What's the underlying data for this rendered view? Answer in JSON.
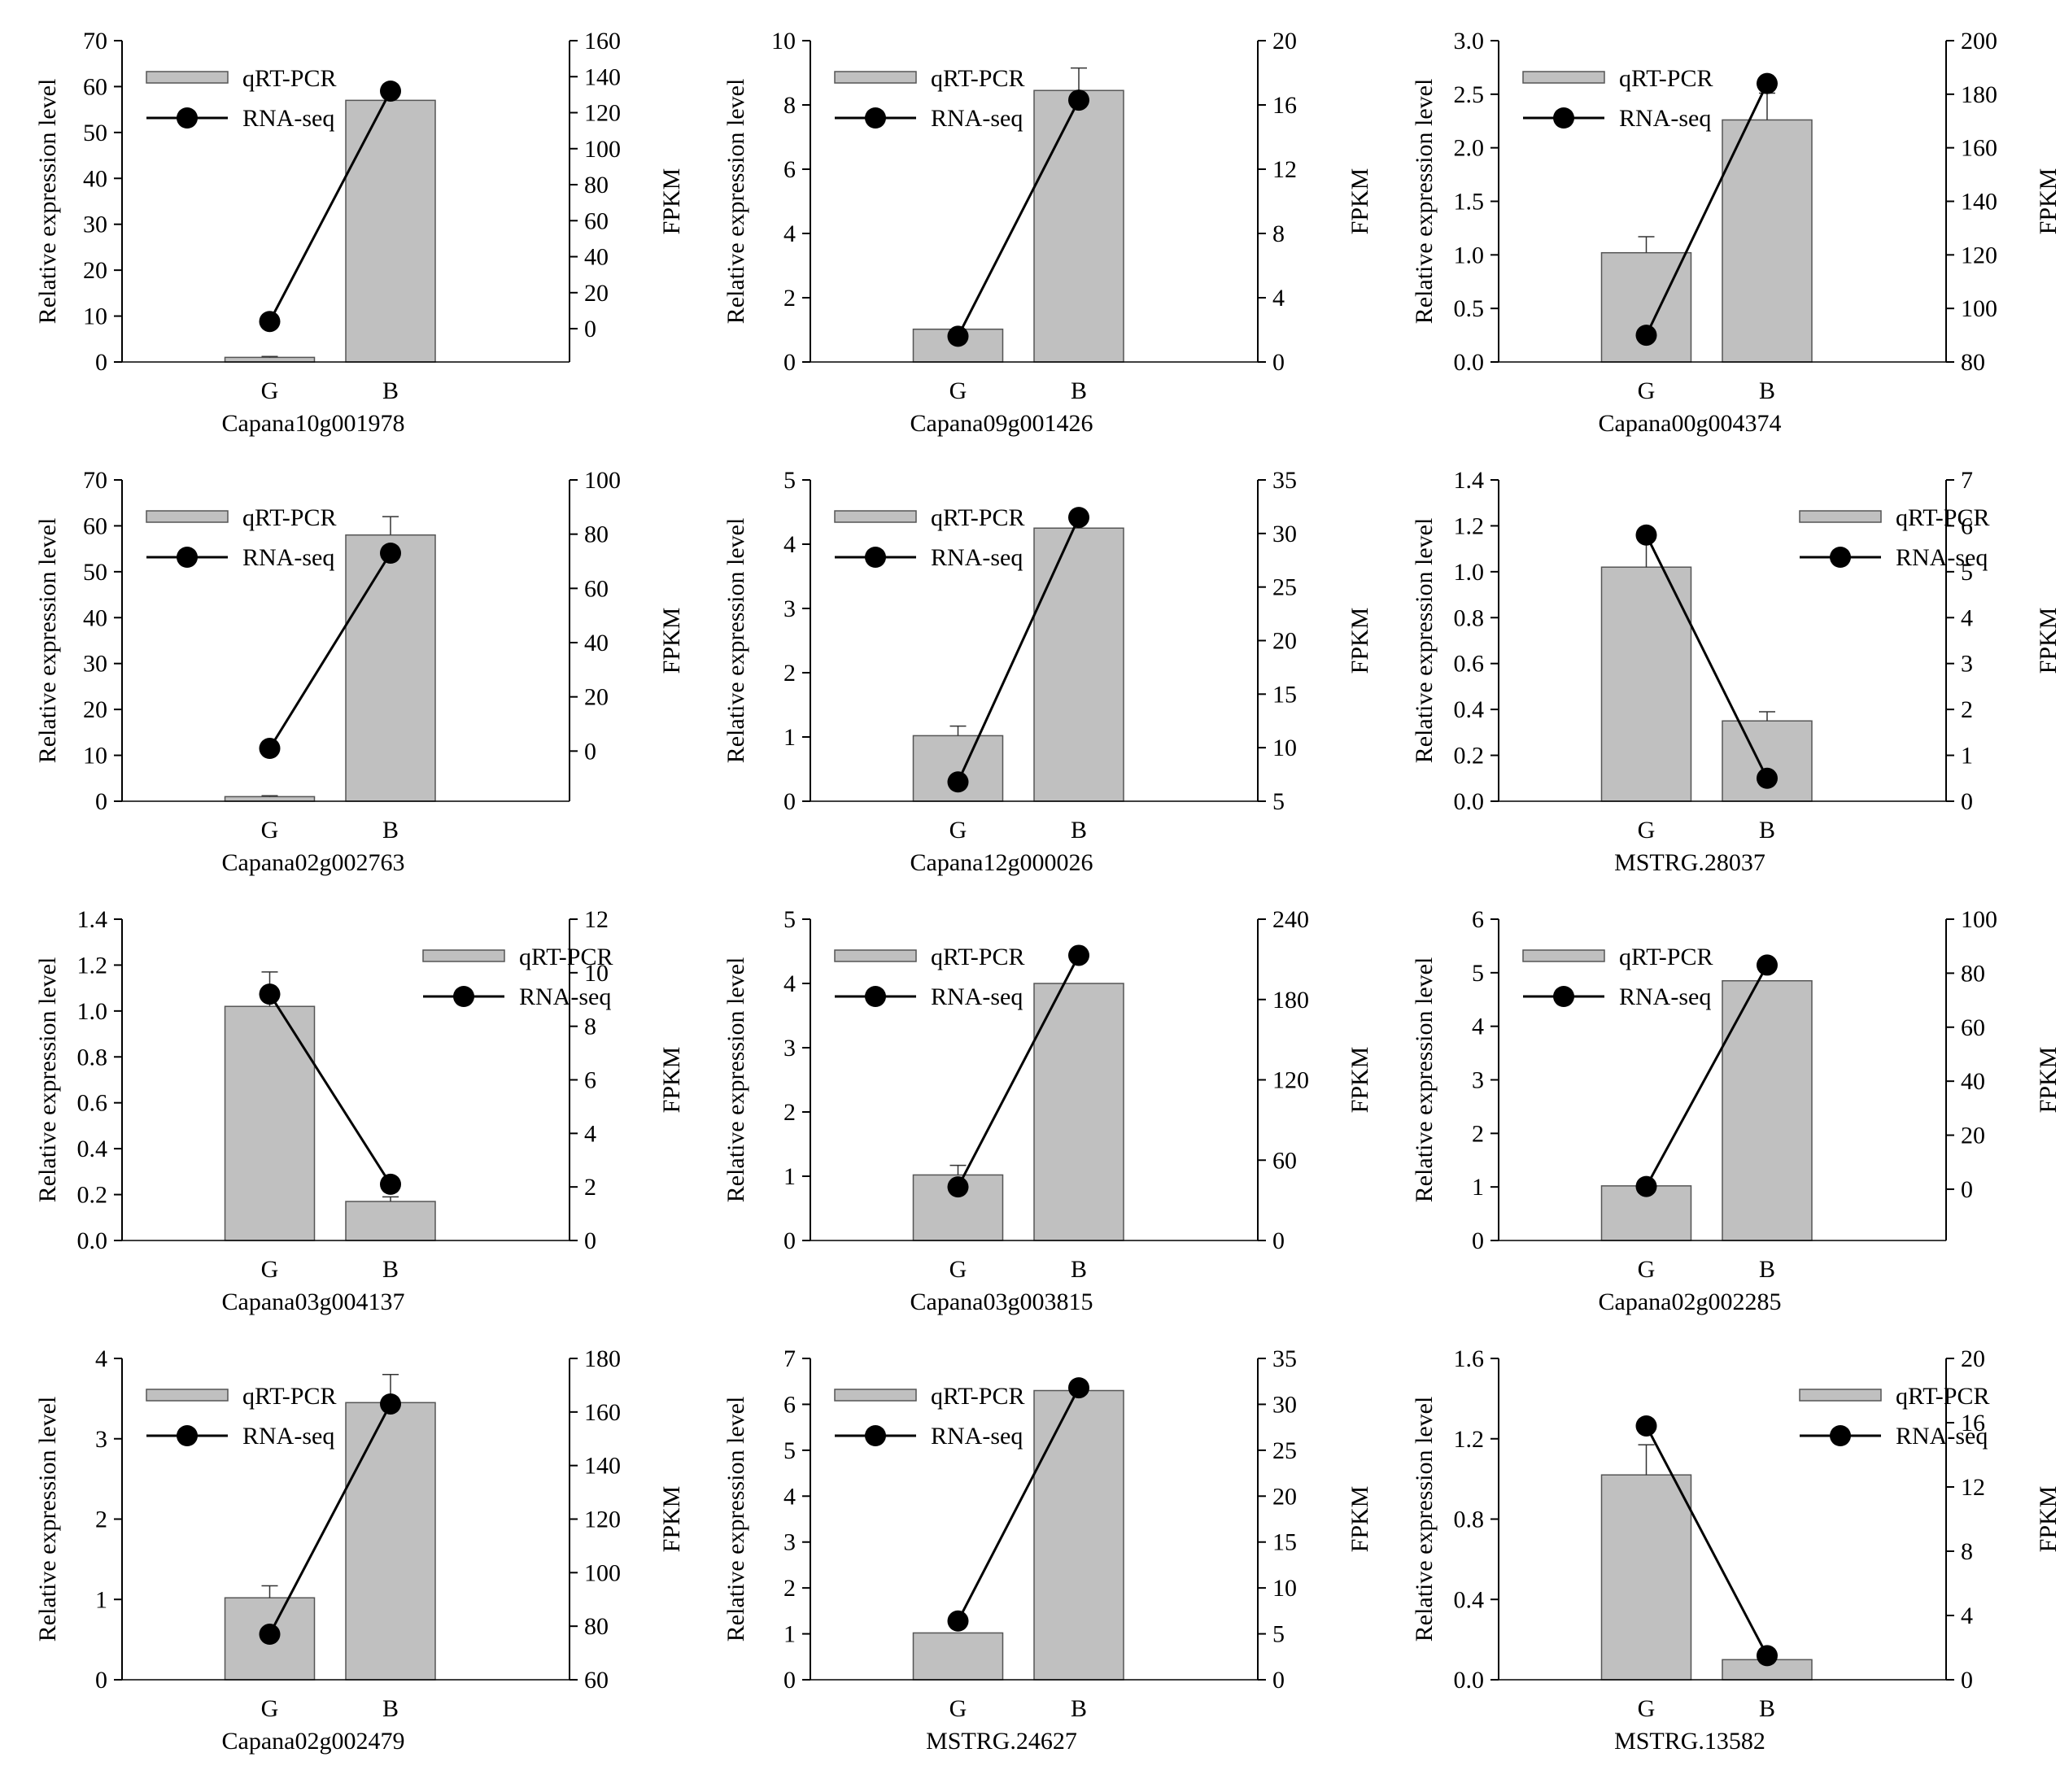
{
  "legend": {
    "bar_label": "qRT-PCR",
    "line_label": "RNA-seq"
  },
  "axis_labels": {
    "left": "Relative expression level",
    "right": "FPKM"
  },
  "colors": {
    "bar_fill": "#c0c0c0",
    "bar_stroke": "#555555",
    "line": "#000000",
    "marker": "#000000"
  },
  "chart_data": [
    {
      "type": "bar",
      "title": "Capana10g001978",
      "xlabel": "Capana10g001978",
      "ylabel": "Relative expression level",
      "y2label": "FPKM",
      "categories": [
        "G",
        "B"
      ],
      "legend_position": "top-left",
      "ylim": [
        0,
        70
      ],
      "yticks": [
        0,
        10,
        20,
        30,
        40,
        50,
        60,
        70
      ],
      "yticklabels": [
        "0",
        "10",
        "20",
        "30",
        "40",
        "50",
        "60",
        "70"
      ],
      "y2lim": [
        -18.5,
        160
      ],
      "y2ticks": [
        0,
        20,
        40,
        60,
        80,
        100,
        120,
        140,
        160
      ],
      "y2ticklabels": [
        "0",
        "20",
        "40",
        "60",
        "80",
        "100",
        "120",
        "140",
        "160"
      ],
      "series": [
        {
          "name": "qRT-PCR",
          "kind": "bar",
          "values": [
            1.0,
            57.0
          ],
          "errors": [
            0.2,
            0
          ]
        },
        {
          "name": "RNA-seq",
          "kind": "line",
          "axis": "right",
          "values": [
            4,
            132
          ]
        }
      ]
    },
    {
      "type": "bar",
      "title": "Capana09g001426",
      "xlabel": "Capana09g001426",
      "ylabel": "Relative expression level",
      "y2label": "FPKM",
      "categories": [
        "G",
        "B"
      ],
      "legend_position": "top-left",
      "ylim": [
        0,
        10
      ],
      "yticks": [
        0,
        2,
        4,
        6,
        8,
        10
      ],
      "yticklabels": [
        "0",
        "2",
        "4",
        "6",
        "8",
        "10"
      ],
      "y2lim": [
        0,
        20
      ],
      "y2ticks": [
        0,
        4,
        8,
        12,
        16,
        20
      ],
      "y2ticklabels": [
        "0",
        "4",
        "8",
        "12",
        "16",
        "20"
      ],
      "series": [
        {
          "name": "qRT-PCR",
          "kind": "bar",
          "values": [
            1.02,
            8.45
          ],
          "errors": [
            0,
            0.7
          ]
        },
        {
          "name": "RNA-seq",
          "kind": "line",
          "axis": "right",
          "values": [
            1.6,
            16.3
          ]
        }
      ]
    },
    {
      "type": "bar",
      "title": "Capana00g004374",
      "xlabel": "Capana00g004374",
      "ylabel": "Relative expression level",
      "y2label": "FPKM",
      "categories": [
        "G",
        "B"
      ],
      "legend_position": "top-left",
      "ylim": [
        0,
        3.0
      ],
      "yticks": [
        0,
        0.5,
        1.0,
        1.5,
        2.0,
        2.5,
        3.0
      ],
      "yticklabels": [
        "0.0",
        "0.5",
        "1.0",
        "1.5",
        "2.0",
        "2.5",
        "3.0"
      ],
      "y2lim": [
        80,
        200
      ],
      "y2ticks": [
        80,
        100,
        120,
        140,
        160,
        180,
        200
      ],
      "y2ticklabels": [
        "80",
        "100",
        "120",
        "140",
        "160",
        "180",
        "200"
      ],
      "series": [
        {
          "name": "qRT-PCR",
          "kind": "bar",
          "values": [
            1.02,
            2.26
          ],
          "errors": [
            0.15,
            0.25
          ]
        },
        {
          "name": "RNA-seq",
          "kind": "line",
          "axis": "right",
          "values": [
            90,
            184
          ]
        }
      ]
    },
    {
      "type": "bar",
      "title": "Capana02g002763",
      "xlabel": "Capana02g002763",
      "ylabel": "Relative expression level",
      "y2label": "FPKM",
      "categories": [
        "G",
        "B"
      ],
      "legend_position": "top-left",
      "ylim": [
        0,
        70
      ],
      "yticks": [
        0,
        10,
        20,
        30,
        40,
        50,
        60,
        70
      ],
      "yticklabels": [
        "0",
        "10",
        "20",
        "30",
        "40",
        "50",
        "60",
        "70"
      ],
      "y2lim": [
        -18.5,
        100
      ],
      "y2ticks": [
        0,
        20,
        40,
        60,
        80,
        100
      ],
      "y2ticklabels": [
        "0",
        "20",
        "40",
        "60",
        "80",
        "100"
      ],
      "series": [
        {
          "name": "qRT-PCR",
          "kind": "bar",
          "values": [
            1.0,
            58.0
          ],
          "errors": [
            0.2,
            4.0
          ]
        },
        {
          "name": "RNA-seq",
          "kind": "line",
          "axis": "right",
          "values": [
            1,
            73
          ]
        }
      ]
    },
    {
      "type": "bar",
      "title": "Capana12g000026",
      "xlabel": "Capana12g000026",
      "ylabel": "Relative expression level",
      "y2label": "FPKM",
      "categories": [
        "G",
        "B"
      ],
      "legend_position": "top-left",
      "ylim": [
        0,
        5
      ],
      "yticks": [
        0,
        1,
        2,
        3,
        4,
        5
      ],
      "yticklabels": [
        "0",
        "1",
        "2",
        "3",
        "4",
        "5"
      ],
      "y2lim": [
        5,
        35
      ],
      "y2ticks": [
        5,
        10,
        15,
        20,
        25,
        30,
        35
      ],
      "y2ticklabels": [
        "5",
        "10",
        "15",
        "20",
        "25",
        "30",
        "35"
      ],
      "series": [
        {
          "name": "qRT-PCR",
          "kind": "bar",
          "values": [
            1.02,
            4.25
          ],
          "errors": [
            0.15,
            0
          ]
        },
        {
          "name": "RNA-seq",
          "kind": "line",
          "axis": "right",
          "values": [
            6.8,
            31.5
          ]
        }
      ]
    },
    {
      "type": "bar",
      "title": "MSTRG.28037",
      "xlabel": "MSTRG.28037",
      "ylabel": "Relative expression level",
      "y2label": "FPKM",
      "categories": [
        "G",
        "B"
      ],
      "legend_position": "top-right",
      "ylim": [
        0,
        1.4
      ],
      "yticks": [
        0,
        0.2,
        0.4,
        0.6,
        0.8,
        1.0,
        1.2,
        1.4
      ],
      "yticklabels": [
        "0.0",
        "0.2",
        "0.4",
        "0.6",
        "0.8",
        "1.0",
        "1.2",
        "1.4"
      ],
      "y2lim": [
        0,
        7
      ],
      "y2ticks": [
        0,
        1,
        2,
        3,
        4,
        5,
        6,
        7
      ],
      "y2ticklabels": [
        "0",
        "1",
        "2",
        "3",
        "4",
        "5",
        "6",
        "7"
      ],
      "series": [
        {
          "name": "qRT-PCR",
          "kind": "bar",
          "values": [
            1.02,
            0.35
          ],
          "errors": [
            0.12,
            0.04
          ]
        },
        {
          "name": "RNA-seq",
          "kind": "line",
          "axis": "right",
          "values": [
            5.8,
            0.5
          ]
        }
      ]
    },
    {
      "type": "bar",
      "title": "Capana03g004137",
      "xlabel": "Capana03g004137",
      "ylabel": "Relative expression level",
      "y2label": "FPKM",
      "categories": [
        "G",
        "B"
      ],
      "legend_position": "top-right",
      "ylim": [
        0,
        1.4
      ],
      "yticks": [
        0,
        0.2,
        0.4,
        0.6,
        0.8,
        1.0,
        1.2,
        1.4
      ],
      "yticklabels": [
        "0.0",
        "0.2",
        "0.4",
        "0.6",
        "0.8",
        "1.0",
        "1.2",
        "1.4"
      ],
      "y2lim": [
        0,
        12
      ],
      "y2ticks": [
        0,
        2,
        4,
        6,
        8,
        10,
        12
      ],
      "y2ticklabels": [
        "0",
        "2",
        "4",
        "6",
        "8",
        "10",
        "12"
      ],
      "series": [
        {
          "name": "qRT-PCR",
          "kind": "bar",
          "values": [
            1.02,
            0.17
          ],
          "errors": [
            0.15,
            0.02
          ]
        },
        {
          "name": "RNA-seq",
          "kind": "line",
          "axis": "right",
          "values": [
            9.2,
            2.1
          ]
        }
      ]
    },
    {
      "type": "bar",
      "title": "Capana03g003815",
      "xlabel": "Capana03g003815",
      "ylabel": "Relative expression level",
      "y2label": "FPKM",
      "categories": [
        "G",
        "B"
      ],
      "legend_position": "top-left",
      "ylim": [
        0,
        5
      ],
      "yticks": [
        0,
        1,
        2,
        3,
        4,
        5
      ],
      "yticklabels": [
        "0",
        "1",
        "2",
        "3",
        "4",
        "5"
      ],
      "y2lim": [
        0,
        240
      ],
      "y2ticks": [
        0,
        60,
        120,
        180,
        240
      ],
      "y2ticklabels": [
        "0",
        "60",
        "120",
        "180",
        "240"
      ],
      "series": [
        {
          "name": "qRT-PCR",
          "kind": "bar",
          "values": [
            1.02,
            4.0
          ],
          "errors": [
            0.15,
            0
          ]
        },
        {
          "name": "RNA-seq",
          "kind": "line",
          "axis": "right",
          "values": [
            40,
            213
          ]
        }
      ]
    },
    {
      "type": "bar",
      "title": "Capana02g002285",
      "xlabel": "Capana02g002285",
      "ylabel": "Relative expression level",
      "y2label": "FPKM",
      "categories": [
        "G",
        "B"
      ],
      "legend_position": "top-left",
      "ylim": [
        0,
        6
      ],
      "yticks": [
        0,
        1,
        2,
        3,
        4,
        5,
        6
      ],
      "yticklabels": [
        "0",
        "1",
        "2",
        "3",
        "4",
        "5",
        "6"
      ],
      "y2lim": [
        -19,
        100
      ],
      "y2ticks": [
        0,
        20,
        40,
        60,
        80,
        100
      ],
      "y2ticklabels": [
        "0",
        "20",
        "40",
        "60",
        "80",
        "100"
      ],
      "series": [
        {
          "name": "qRT-PCR",
          "kind": "bar",
          "values": [
            1.02,
            4.85
          ],
          "errors": [
            0,
            0
          ]
        },
        {
          "name": "RNA-seq",
          "kind": "line",
          "axis": "right",
          "values": [
            1,
            83
          ]
        }
      ]
    },
    {
      "type": "bar",
      "title": "Capana02g002479",
      "xlabel": "Capana02g002479",
      "ylabel": "Relative expression level",
      "y2label": "FPKM",
      "categories": [
        "G",
        "B"
      ],
      "legend_position": "top-left",
      "ylim": [
        0,
        4
      ],
      "yticks": [
        0,
        1,
        2,
        3,
        4
      ],
      "yticklabels": [
        "0",
        "1",
        "2",
        "3",
        "4"
      ],
      "y2lim": [
        60,
        180
      ],
      "y2ticks": [
        60,
        80,
        100,
        120,
        140,
        160,
        180
      ],
      "y2ticklabels": [
        "60",
        "80",
        "100",
        "120",
        "140",
        "160",
        "180"
      ],
      "series": [
        {
          "name": "qRT-PCR",
          "kind": "bar",
          "values": [
            1.02,
            3.45
          ],
          "errors": [
            0.15,
            0.35
          ]
        },
        {
          "name": "RNA-seq",
          "kind": "line",
          "axis": "right",
          "values": [
            77,
            163
          ]
        }
      ]
    },
    {
      "type": "bar",
      "title": "MSTRG.24627",
      "xlabel": "MSTRG.24627",
      "ylabel": "Relative expression level",
      "y2label": "FPKM",
      "categories": [
        "G",
        "B"
      ],
      "legend_position": "top-left",
      "ylim": [
        0,
        7
      ],
      "yticks": [
        0,
        1,
        2,
        3,
        4,
        5,
        6,
        7
      ],
      "yticklabels": [
        "0",
        "1",
        "2",
        "3",
        "4",
        "5",
        "6",
        "7"
      ],
      "y2lim": [
        0,
        35
      ],
      "y2ticks": [
        0,
        5,
        10,
        15,
        20,
        25,
        30,
        35
      ],
      "y2ticklabels": [
        "0",
        "5",
        "10",
        "15",
        "20",
        "25",
        "30",
        "35"
      ],
      "series": [
        {
          "name": "qRT-PCR",
          "kind": "bar",
          "values": [
            1.02,
            6.3
          ],
          "errors": [
            0,
            0
          ]
        },
        {
          "name": "RNA-seq",
          "kind": "line",
          "axis": "right",
          "values": [
            6.4,
            31.8
          ]
        }
      ]
    },
    {
      "type": "bar",
      "title": "MSTRG.13582",
      "xlabel": "MSTRG.13582",
      "ylabel": "Relative expression level",
      "y2label": "FPKM",
      "categories": [
        "G",
        "B"
      ],
      "legend_position": "top-right",
      "ylim": [
        0,
        1.6
      ],
      "yticks": [
        0,
        0.4,
        0.8,
        1.2,
        1.6
      ],
      "yticklabels": [
        "0.0",
        "0.4",
        "0.8",
        "1.2",
        "1.6"
      ],
      "y2lim": [
        0,
        20
      ],
      "y2ticks": [
        0,
        4,
        8,
        12,
        16,
        20
      ],
      "y2ticklabels": [
        "0",
        "4",
        "8",
        "12",
        "16",
        "20"
      ],
      "series": [
        {
          "name": "qRT-PCR",
          "kind": "bar",
          "values": [
            1.02,
            0.1
          ],
          "errors": [
            0.15,
            0
          ]
        },
        {
          "name": "RNA-seq",
          "kind": "line",
          "axis": "right",
          "values": [
            15.8,
            1.5
          ]
        }
      ]
    }
  ]
}
